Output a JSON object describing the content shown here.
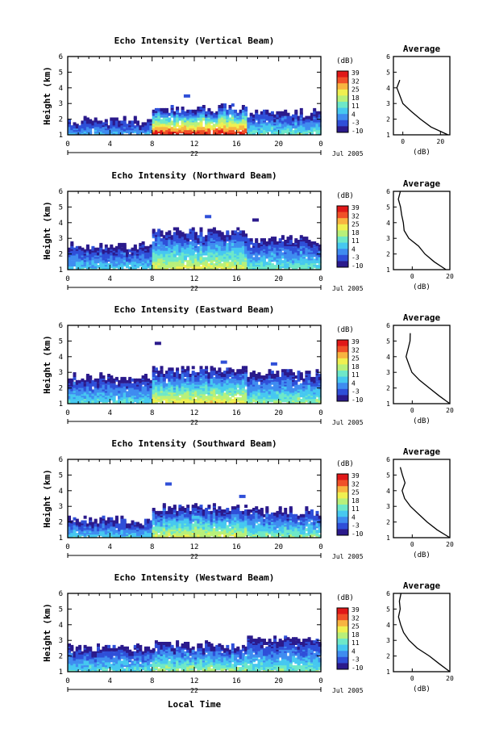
{
  "figure": {
    "xlabel_bottom": "Local Time",
    "date_label": "Jul 2005",
    "day_label": "22",
    "ylabel": "Height (km)",
    "colorbar_unit": "(dB)",
    "colorbar_ticks": [
      "39",
      "32",
      "25",
      "18",
      "11",
      "4",
      "-3",
      "-10"
    ],
    "avg_title": "Average",
    "avg_xlabel": "(dB)"
  },
  "colors": {
    "colormap": [
      "#2b1a8c",
      "#2f4fd8",
      "#3f8cf0",
      "#46c8f0",
      "#6ee8c8",
      "#b8f07a",
      "#f0f050",
      "#f8b440",
      "#f05028",
      "#e01818"
    ],
    "background": "#ffffff",
    "axis": "#000000"
  },
  "chart_data": [
    {
      "type": "heatmap",
      "title": "Echo Intensity (Vertical Beam)",
      "xlabel": "",
      "ylabel": "Height (km)",
      "x_ticks": [
        "0",
        "4",
        "8",
        "12",
        "16",
        "20",
        "0"
      ],
      "y_ticks": [
        "1",
        "2",
        "3",
        "4",
        "5",
        "6"
      ],
      "xlim": [
        0,
        24
      ],
      "ylim": [
        1,
        6
      ],
      "colorbar": {
        "unit": "dB",
        "range": [
          -10,
          39
        ]
      },
      "echo_layer": [
        {
          "x": [
            0,
            8
          ],
          "top_km": 1.8,
          "peak_db": 5
        },
        {
          "x": [
            8,
            17
          ],
          "top_km": 2.6,
          "peak_db": 35
        },
        {
          "x": [
            17,
            24
          ],
          "top_km": 2.3,
          "peak_db": 12
        }
      ],
      "average": {
        "xlim": [
          -5,
          25
        ],
        "x_ticks": [
          "0",
          "20"
        ],
        "height_km": [
          1,
          1.5,
          2,
          2.5,
          3,
          3.5,
          4,
          4.5
        ],
        "db": [
          24,
          15,
          9,
          4,
          0,
          -2,
          -3,
          -2
        ]
      }
    },
    {
      "type": "heatmap",
      "title": "Echo Intensity (Northward Beam)",
      "xlabel": "",
      "ylabel": "Height (km)",
      "x_ticks": [
        "0",
        "4",
        "8",
        "12",
        "16",
        "20",
        "0"
      ],
      "y_ticks": [
        "1",
        "2",
        "3",
        "4",
        "5",
        "6"
      ],
      "xlim": [
        0,
        24
      ],
      "ylim": [
        1,
        6
      ],
      "colorbar": {
        "unit": "dB",
        "range": [
          -10,
          39
        ]
      },
      "echo_layer": [
        {
          "x": [
            0,
            8
          ],
          "top_km": 2.4,
          "peak_db": 8
        },
        {
          "x": [
            8,
            17
          ],
          "top_km": 3.3,
          "peak_db": 20
        },
        {
          "x": [
            17,
            24
          ],
          "top_km": 2.8,
          "peak_db": 12
        }
      ],
      "average": {
        "xlim": [
          -10,
          20
        ],
        "x_ticks": [
          "0",
          "20"
        ],
        "height_km": [
          1,
          1.5,
          2,
          2.5,
          3,
          3.5,
          4,
          4.5,
          5,
          5.5,
          6
        ],
        "db": [
          18,
          12,
          7,
          3,
          -2,
          -4,
          -5,
          -6,
          -6,
          -7,
          -6
        ]
      }
    },
    {
      "type": "heatmap",
      "title": "Echo Intensity (Eastward Beam)",
      "xlabel": "",
      "ylabel": "Height (km)",
      "x_ticks": [
        "0",
        "4",
        "8",
        "12",
        "16",
        "20",
        "0"
      ],
      "y_ticks": [
        "1",
        "2",
        "3",
        "4",
        "5",
        "6"
      ],
      "xlim": [
        0,
        24
      ],
      "ylim": [
        1,
        6
      ],
      "colorbar": {
        "unit": "dB",
        "range": [
          -10,
          39
        ]
      },
      "echo_layer": [
        {
          "x": [
            0,
            8
          ],
          "top_km": 2.6,
          "peak_db": 10
        },
        {
          "x": [
            8,
            17
          ],
          "top_km": 3.0,
          "peak_db": 22
        },
        {
          "x": [
            17,
            24
          ],
          "top_km": 2.8,
          "peak_db": 14
        }
      ],
      "average": {
        "xlim": [
          -10,
          20
        ],
        "x_ticks": [
          "0",
          "20"
        ],
        "height_km": [
          1,
          1.5,
          2,
          2.5,
          3,
          3.5,
          4,
          4.5,
          5,
          5.5
        ],
        "db": [
          20,
          14,
          9,
          4,
          0,
          -2,
          -3,
          -2,
          -1,
          -1
        ]
      }
    },
    {
      "type": "heatmap",
      "title": "Echo Intensity (Southward Beam)",
      "xlabel": "",
      "ylabel": "Height (km)",
      "x_ticks": [
        "0",
        "4",
        "8",
        "12",
        "16",
        "20",
        "0"
      ],
      "y_ticks": [
        "1",
        "2",
        "3",
        "4",
        "5",
        "6"
      ],
      "xlim": [
        0,
        24
      ],
      "ylim": [
        1,
        6
      ],
      "colorbar": {
        "unit": "dB",
        "range": [
          -10,
          39
        ]
      },
      "echo_layer": [
        {
          "x": [
            0,
            8
          ],
          "top_km": 2.0,
          "peak_db": 8
        },
        {
          "x": [
            8,
            17
          ],
          "top_km": 2.8,
          "peak_db": 20
        },
        {
          "x": [
            17,
            24
          ],
          "top_km": 2.6,
          "peak_db": 14
        }
      ],
      "average": {
        "xlim": [
          -10,
          20
        ],
        "x_ticks": [
          "0",
          "20"
        ],
        "height_km": [
          1,
          1.5,
          2,
          2.5,
          3,
          3.5,
          4,
          4.5,
          5,
          5.5
        ],
        "db": [
          20,
          13,
          8,
          3,
          -1,
          -4,
          -5,
          -4,
          -5,
          -6
        ]
      }
    },
    {
      "type": "heatmap",
      "title": "Echo Intensity (Westward Beam)",
      "xlabel": "Local Time",
      "ylabel": "Height (km)",
      "x_ticks": [
        "0",
        "4",
        "8",
        "12",
        "16",
        "20",
        "0"
      ],
      "y_ticks": [
        "1",
        "2",
        "3",
        "4",
        "5",
        "6"
      ],
      "xlim": [
        0,
        24
      ],
      "ylim": [
        1,
        6
      ],
      "colorbar": {
        "unit": "dB",
        "range": [
          -10,
          39
        ]
      },
      "echo_layer": [
        {
          "x": [
            0,
            8
          ],
          "top_km": 2.4,
          "peak_db": 10
        },
        {
          "x": [
            8,
            17
          ],
          "top_km": 2.6,
          "peak_db": 16
        },
        {
          "x": [
            17,
            24
          ],
          "top_km": 3.0,
          "peak_db": 12
        }
      ],
      "average": {
        "xlim": [
          -10,
          20
        ],
        "x_ticks": [
          "0",
          "20"
        ],
        "height_km": [
          1,
          1.5,
          2,
          2.5,
          3,
          3.5,
          4,
          4.5,
          5,
          5.5,
          6
        ],
        "db": [
          20,
          14,
          9,
          3,
          -2,
          -5,
          -6,
          -7,
          -6,
          -7,
          -6
        ]
      }
    }
  ]
}
